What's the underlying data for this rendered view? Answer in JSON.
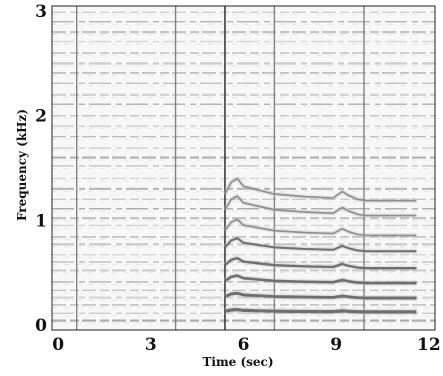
{
  "chart_data": {
    "type": "heatmap",
    "xlabel": "Time (sec)",
    "ylabel": "Frequency (kHz)",
    "xlim": [
      -0.2,
      12.2
    ],
    "ylim": [
      -0.05,
      3.05
    ],
    "x_ticks": [
      0,
      3,
      6,
      9,
      12
    ],
    "x_tick_labels": [
      "0",
      "3",
      "6",
      "9",
      "12"
    ],
    "y_ticks": [
      0,
      1,
      2,
      3
    ],
    "y_tick_labels": [
      "0",
      "1",
      "2",
      "3"
    ],
    "grid": false,
    "legend": "none",
    "colormap": "grayscale",
    "background_color": "#f7f7f7",
    "band_color": "#6e6e6e",
    "stationary_bands_khz": [
      0.04,
      0.11,
      0.19,
      0.26,
      0.33,
      0.41,
      0.52,
      0.6,
      0.67,
      0.77,
      0.84,
      0.95,
      1.02,
      1.11,
      1.2,
      1.3,
      1.4,
      1.52,
      1.6,
      1.69,
      1.8,
      1.9,
      2.0,
      2.11,
      2.2,
      2.31,
      2.41,
      2.5,
      2.6,
      2.71,
      2.8,
      2.9,
      2.99
    ],
    "onset_lines_sec": [
      0.6,
      3.8,
      5.4,
      7.0,
      9.9
    ],
    "note_event": {
      "start_sec": 5.4,
      "end_sec": 11.6,
      "harmonics_khz": [
        0.13,
        0.27,
        0.42,
        0.57,
        0.74,
        0.9,
        1.1,
        1.25
      ],
      "time_points_sec": [
        5.4,
        5.6,
        5.8,
        6.0,
        7.0,
        8.0,
        8.9,
        9.2,
        9.4,
        9.7,
        10.0,
        11.6
      ],
      "shape_factors": [
        1.0,
        1.09,
        1.12,
        1.06,
        1.0,
        0.98,
        0.97,
        1.02,
        0.99,
        0.96,
        0.95,
        0.95
      ]
    }
  }
}
